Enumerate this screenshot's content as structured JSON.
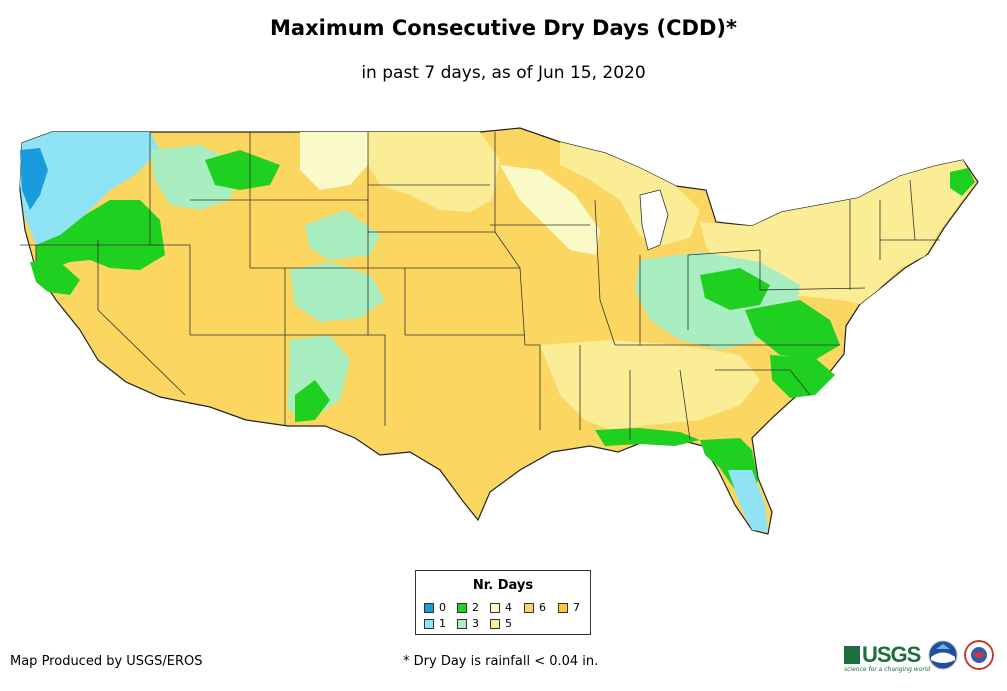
{
  "title": "Maximum Consecutive Dry Days (CDD)*",
  "subtitle": "in past 7 days, as of Jun 15, 2020",
  "legend": {
    "title": "Nr. Days",
    "items": [
      {
        "label": "0",
        "color": "#1a9bde"
      },
      {
        "label": "1",
        "color": "#8ee3f5"
      },
      {
        "label": "2",
        "color": "#20d020"
      },
      {
        "label": "3",
        "color": "#a8eec0"
      },
      {
        "label": "4",
        "color": "#fafac8"
      },
      {
        "label": "5",
        "color": "#fbec96"
      },
      {
        "label": "6",
        "color": "#fbd762"
      },
      {
        "label": "7",
        "color": "#fbc83a"
      }
    ]
  },
  "credit": "Map Produced by USGS/EROS",
  "footnote": "* Dry Day is rainfall < 0.04 in.",
  "logos": {
    "usgs": "USGS",
    "usgs_tagline": "science for a changing world",
    "noaa": "NOAA",
    "nws": "National Weather Service"
  }
}
